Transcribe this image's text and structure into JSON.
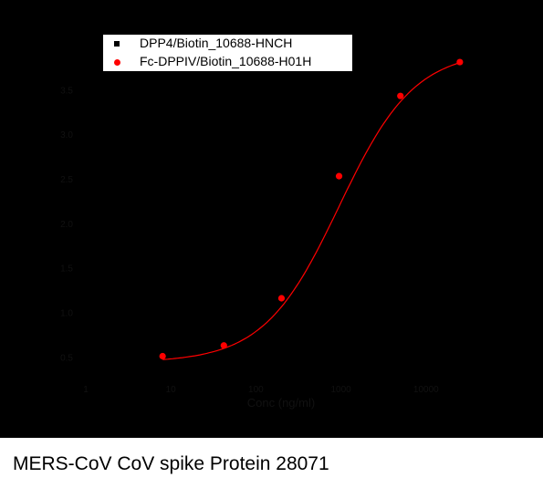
{
  "caption": "MERS-CoV CoV spike Protein 28071",
  "legend": {
    "items": [
      {
        "label": "DPP4/Biotin_10688-HNCH",
        "marker": "square",
        "color": "#000000"
      },
      {
        "label": "Fc-DPPIV/Biotin_10688-H01H",
        "marker": "circle",
        "color": "#ff0000"
      }
    ]
  },
  "chart_data": {
    "type": "scatter",
    "x_scale": "log",
    "xlabel": "Conc (ng/ml)",
    "ylabel": "",
    "xlim": [
      1,
      100000
    ],
    "ylim": [
      0.3,
      3.8
    ],
    "x_ticks": [
      {
        "value": 1,
        "label": "1"
      },
      {
        "value": 10,
        "label": "10"
      },
      {
        "value": 100,
        "label": "100"
      },
      {
        "value": 1000,
        "label": "1000"
      },
      {
        "value": 10000,
        "label": "10000"
      }
    ],
    "y_ticks": [
      {
        "value": 0.5,
        "label": "0.5"
      },
      {
        "value": 1.0,
        "label": "1.0"
      },
      {
        "value": 1.5,
        "label": "1.5"
      },
      {
        "value": 2.0,
        "label": "2.0"
      },
      {
        "value": 2.5,
        "label": "2.5"
      },
      {
        "value": 3.0,
        "label": "3.0"
      },
      {
        "value": 3.5,
        "label": "3.5"
      }
    ],
    "background": "#000000",
    "series": [
      {
        "name": "Fc-DPPIV/Biotin_10688-H01H",
        "color": "#ff0000",
        "points": [
          {
            "x": 8,
            "y": 0.52
          },
          {
            "x": 42,
            "y": 0.64
          },
          {
            "x": 200,
            "y": 1.17
          },
          {
            "x": 950,
            "y": 2.54
          },
          {
            "x": 5000,
            "y": 3.44
          },
          {
            "x": 25000,
            "y": 3.82
          }
        ],
        "fit": {
          "bottom": 0.45,
          "top": 3.95,
          "ec50": 950,
          "hill": 0.98
        }
      }
    ]
  }
}
